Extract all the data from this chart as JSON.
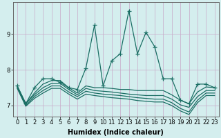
{
  "xlabel": "Humidex (Indice chaleur)",
  "ylabel": "",
  "bg_color": "#d4eeee",
  "grid_color": "#c8a8c8",
  "line_color": "#1a6e64",
  "xlim": [
    -0.5,
    23.5
  ],
  "ylim": [
    6.7,
    9.9
  ],
  "x_ticks": [
    0,
    1,
    2,
    3,
    4,
    5,
    6,
    7,
    8,
    9,
    10,
    11,
    12,
    13,
    14,
    15,
    16,
    17,
    18,
    19,
    20,
    21,
    22,
    23
  ],
  "y_ticks": [
    7,
    8,
    9
  ],
  "series": [
    {
      "y": [
        7.55,
        7.05,
        7.5,
        7.75,
        7.75,
        7.65,
        7.5,
        7.45,
        8.05,
        9.25,
        7.55,
        8.25,
        8.45,
        9.65,
        8.45,
        9.05,
        8.65,
        7.75,
        7.75,
        7.15,
        7.05,
        7.6,
        7.6,
        7.5
      ],
      "marker": true
    },
    {
      "y": [
        7.55,
        7.05,
        7.35,
        7.6,
        7.7,
        7.7,
        7.5,
        7.35,
        7.55,
        7.5,
        7.5,
        7.48,
        7.45,
        7.45,
        7.42,
        7.42,
        7.42,
        7.42,
        7.3,
        7.15,
        7.05,
        7.38,
        7.52,
        7.5
      ],
      "marker": false
    },
    {
      "y": [
        7.52,
        7.05,
        7.3,
        7.5,
        7.62,
        7.62,
        7.45,
        7.3,
        7.48,
        7.42,
        7.4,
        7.38,
        7.35,
        7.32,
        7.3,
        7.28,
        7.28,
        7.28,
        7.18,
        7.02,
        6.95,
        7.25,
        7.42,
        7.42
      ],
      "marker": false
    },
    {
      "y": [
        7.5,
        7.0,
        7.25,
        7.42,
        7.55,
        7.55,
        7.38,
        7.25,
        7.4,
        7.35,
        7.32,
        7.3,
        7.28,
        7.25,
        7.22,
        7.2,
        7.18,
        7.18,
        7.08,
        6.92,
        6.82,
        7.15,
        7.35,
        7.35
      ],
      "marker": false
    },
    {
      "y": [
        7.48,
        6.98,
        7.2,
        7.35,
        7.48,
        7.48,
        7.32,
        7.18,
        7.32,
        7.28,
        7.25,
        7.22,
        7.2,
        7.18,
        7.14,
        7.12,
        7.1,
        7.1,
        7.0,
        6.85,
        6.75,
        7.08,
        7.28,
        7.28
      ],
      "marker": false
    }
  ],
  "marker_symbol": "+",
  "marker_size": 4,
  "line_width": 0.9,
  "axis_fontsize": 7,
  "tick_fontsize": 6,
  "xlabel_fontsize": 7,
  "xlabel_fontweight": "bold"
}
